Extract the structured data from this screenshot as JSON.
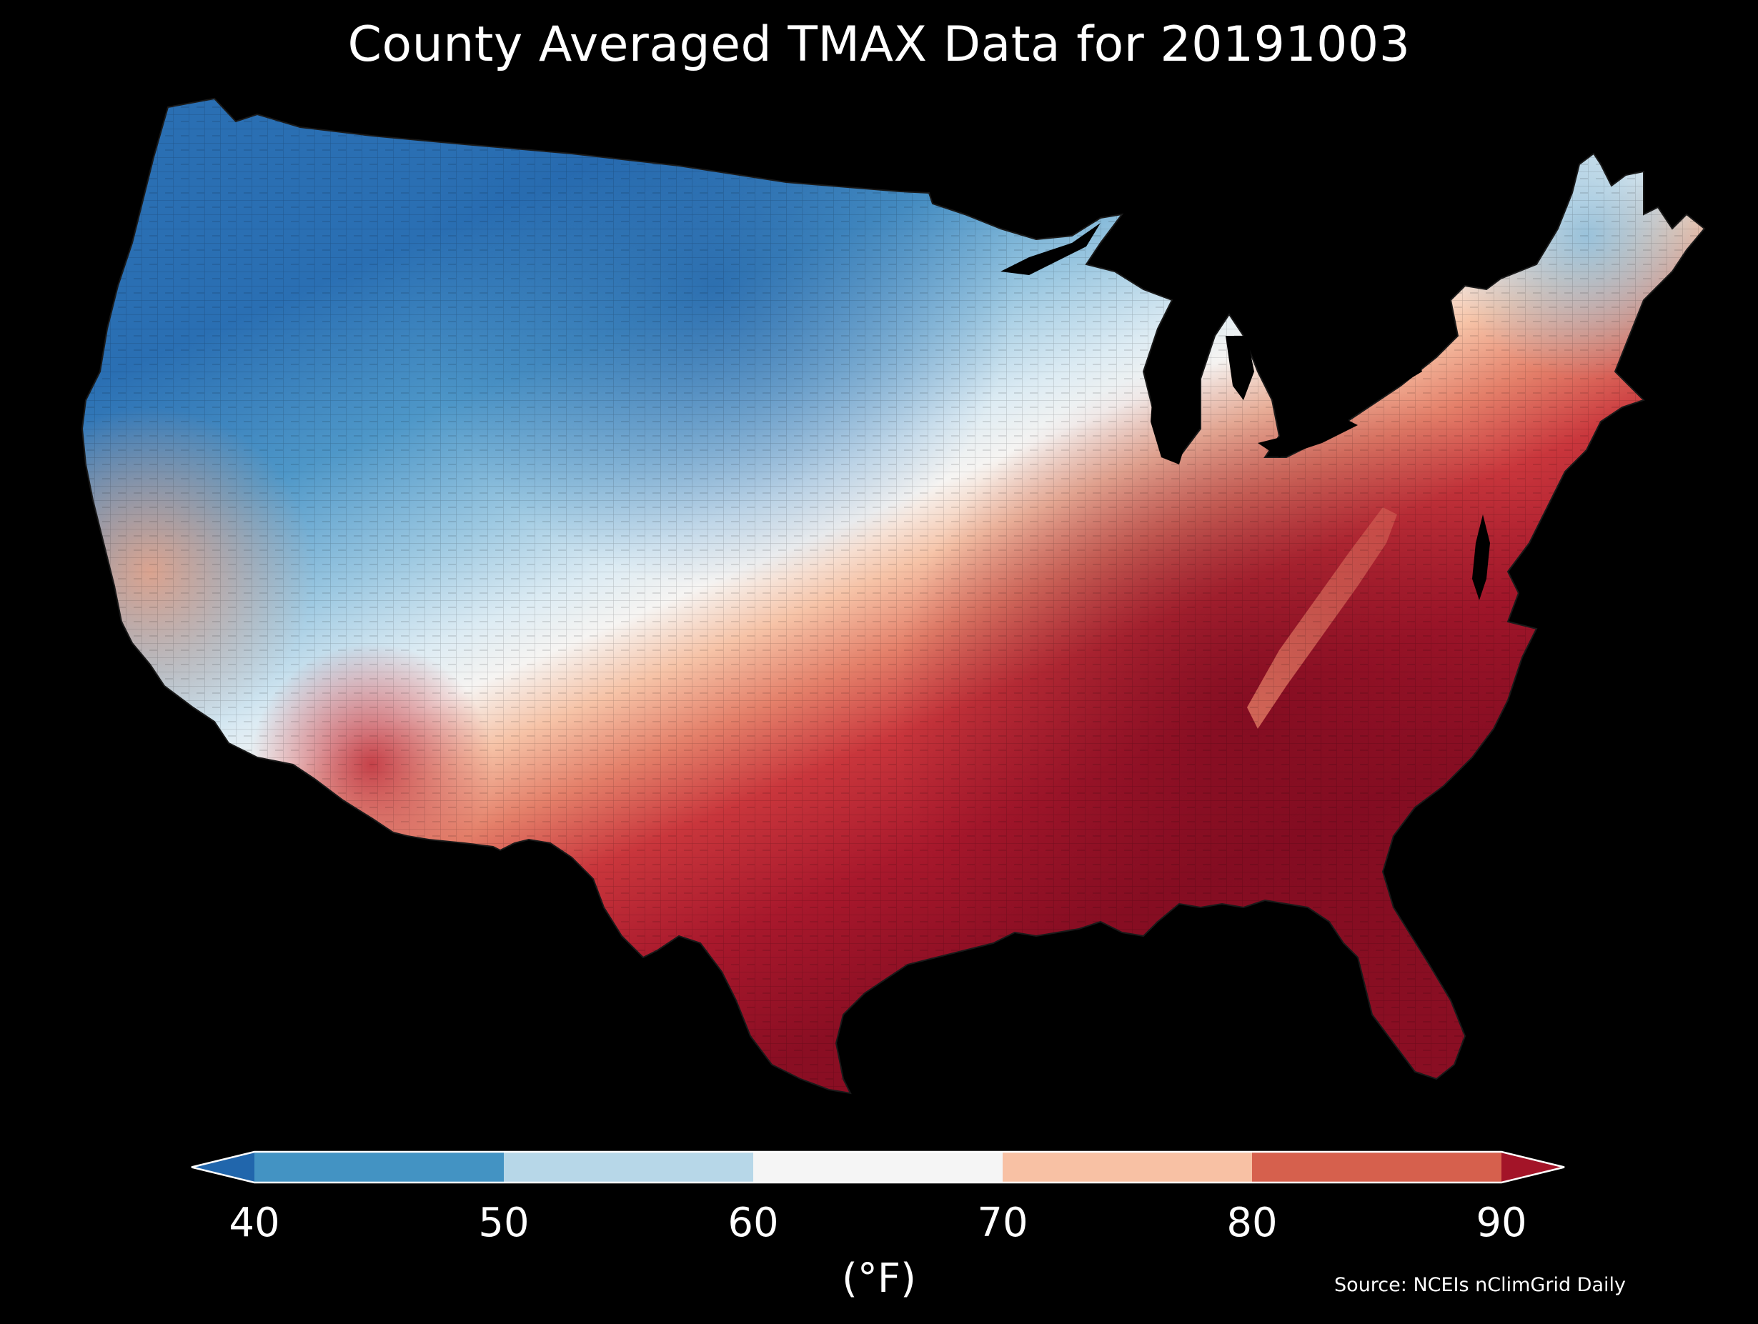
{
  "title": "County Averaged TMAX Data for 20191003",
  "colorbar": {
    "ticks": [
      "40",
      "50",
      "60",
      "70",
      "80",
      "90"
    ],
    "tick_values": [
      40,
      50,
      60,
      70,
      80,
      90
    ],
    "unit_label": "(°F)",
    "bins": [
      {
        "from": 40,
        "to": 50,
        "color": "#4393c3"
      },
      {
        "from": 50,
        "to": 60,
        "color": "#b7d7e8"
      },
      {
        "from": 60,
        "to": 70,
        "color": "#f5f5f5"
      },
      {
        "from": 70,
        "to": 80,
        "color": "#f8c1a4"
      },
      {
        "from": 80,
        "to": 90,
        "color": "#d6604d"
      }
    ],
    "under_color": "#2166ac",
    "over_color": "#a31428",
    "extend": "both"
  },
  "source": "Source: NCEIs nClimGrid Daily",
  "map": {
    "region": "Contiguous United States",
    "variable": "TMAX",
    "date": "20191003",
    "pattern": "cool in the northern Plains and Rockies, warm-to-hot across the South and East",
    "colors": {
      "background": "#000000",
      "darkest_blue": "#2166ac",
      "darkest_red": "#8a0e23"
    }
  }
}
